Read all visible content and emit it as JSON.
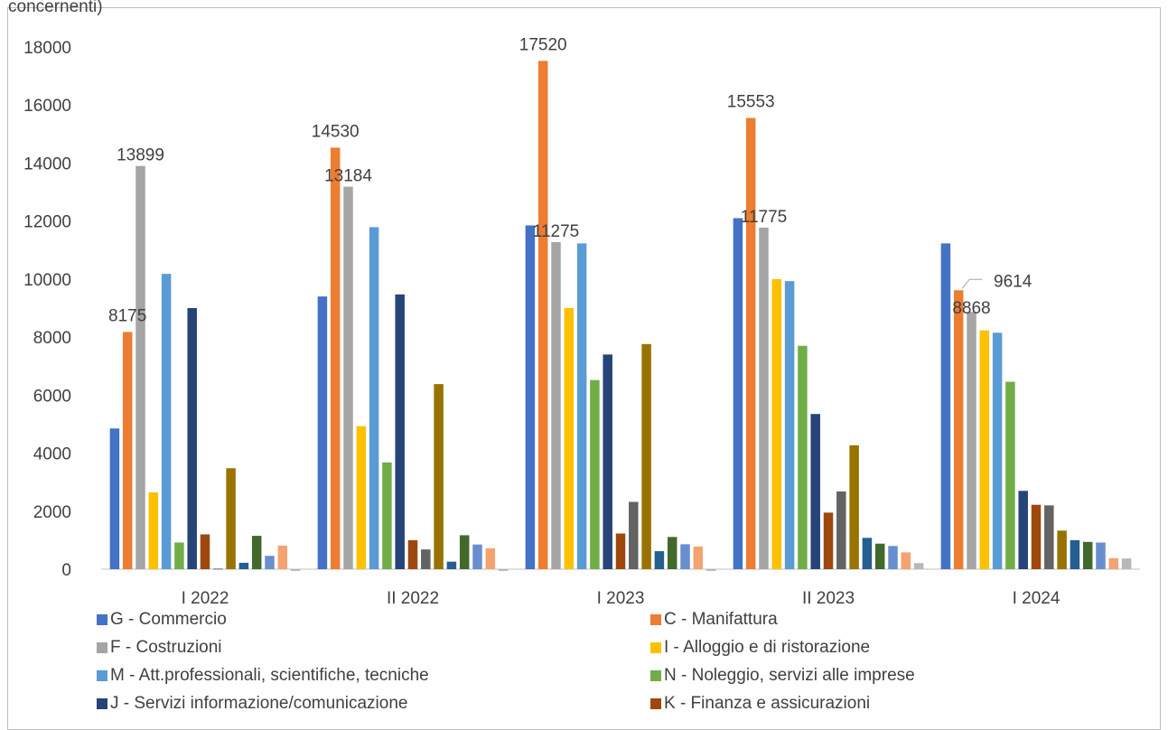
{
  "header": {
    "cut_text": "concernenti)"
  },
  "chart_data": {
    "type": "bar",
    "categories": [
      "I 2022",
      "II 2022",
      "I 2023",
      "II 2023",
      "I 2024"
    ],
    "ylim": [
      0,
      18000
    ],
    "yticks": [
      0,
      2000,
      4000,
      6000,
      8000,
      10000,
      12000,
      14000,
      16000,
      18000
    ],
    "grid": false,
    "legend_position": "bottom",
    "series": [
      {
        "name": "G - Commercio",
        "color": "#4472C4",
        "values": [
          4850,
          9400,
          11850,
          12100,
          11230
        ]
      },
      {
        "name": "C - Manifattura",
        "color": "#ED7D31",
        "values": [
          8175,
          14530,
          17520,
          15553,
          9614
        ]
      },
      {
        "name": "F - Costruzioni",
        "color": "#A5A5A5",
        "values": [
          13899,
          13184,
          11275,
          11775,
          8868
        ]
      },
      {
        "name": "I - Alloggio e di ristorazione",
        "color": "#FFC000",
        "values": [
          2650,
          4930,
          9000,
          10000,
          8230
        ]
      },
      {
        "name": "M - Att.professionali, scientifiche, tecniche",
        "color": "#5B9BD5",
        "values": [
          10180,
          11790,
          11230,
          9930,
          8150
        ]
      },
      {
        "name": "N - Noleggio,  servizi alle imprese",
        "color": "#70AD47",
        "values": [
          920,
          3680,
          6520,
          7700,
          6460
        ]
      },
      {
        "name": "J - Servizi informazione/comunicazione",
        "color": "#264478",
        "values": [
          9000,
          9470,
          7400,
          5350,
          2700
        ]
      },
      {
        "name": "K - Finanza e assicurazioni",
        "color": "#9E480E",
        "values": [
          1200,
          1000,
          1230,
          1950,
          2220
        ]
      },
      {
        "name": "",
        "color": "#EBEBEB",
        "values": [
          20,
          680,
          2320,
          2680,
          2200
        ]
      },
      {
        "name": "",
        "color": "#997300",
        "values": [
          3480,
          6380,
          7760,
          4270,
          1330
        ]
      },
      {
        "name": "",
        "color": "#255E91",
        "values": [
          220,
          260,
          620,
          1080,
          1000
        ]
      },
      {
        "name": "",
        "color": "#43682B",
        "values": [
          1150,
          1170,
          1110,
          880,
          940
        ]
      },
      {
        "name": "",
        "color": "#698ED0",
        "values": [
          460,
          850,
          860,
          800,
          920
        ]
      },
      {
        "name": "",
        "color": "#F4A370",
        "values": [
          810,
          720,
          780,
          580,
          380
        ]
      },
      {
        "name": "",
        "color": "#B7B7B7",
        "values": [
          -60,
          -60,
          -60,
          210,
          370
        ]
      }
    ],
    "series_colors_note_override": [
      "#4472C4",
      "#ED7D31",
      "#A5A5A5",
      "#FFC000",
      "#5B9BD5",
      "#70AD47",
      "#264478",
      "#9E480E",
      "#636363",
      "#997300",
      "#255E91",
      "#43682B",
      "#698ED0",
      "#F4A370",
      "#B7B7B7"
    ],
    "data_labels": [
      {
        "series": 1,
        "category": 0,
        "text": "8175"
      },
      {
        "series": 2,
        "category": 0,
        "text": "13899"
      },
      {
        "series": 1,
        "category": 1,
        "text": "14530"
      },
      {
        "series": 2,
        "category": 1,
        "text": "13184"
      },
      {
        "series": 1,
        "category": 2,
        "text": "17520"
      },
      {
        "series": 2,
        "category": 2,
        "text": "11275"
      },
      {
        "series": 1,
        "category": 3,
        "text": "15553"
      },
      {
        "series": 2,
        "category": 3,
        "text": "11775"
      },
      {
        "series": 1,
        "category": 4,
        "text": "9614"
      },
      {
        "series": 2,
        "category": 4,
        "text": "8868"
      }
    ]
  }
}
